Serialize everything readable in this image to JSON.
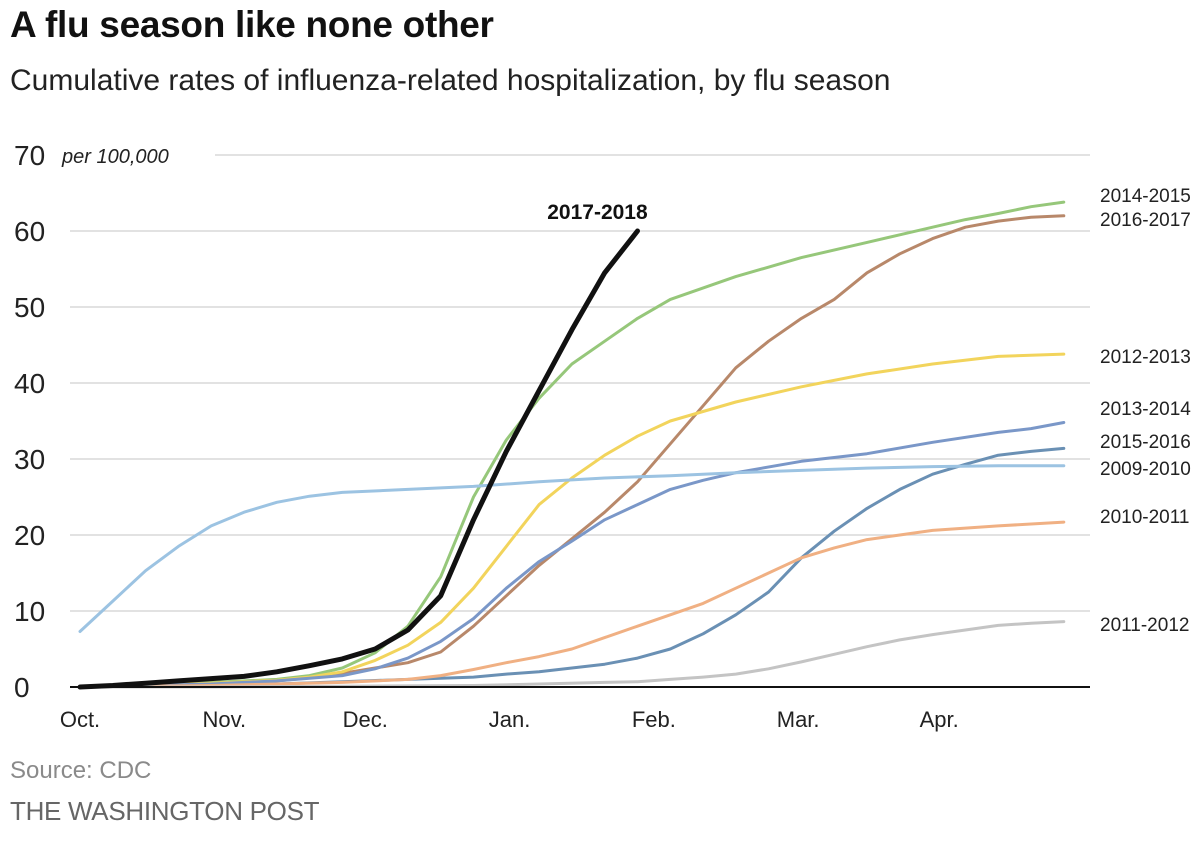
{
  "title": "A flu season like none other",
  "subtitle": "Cumulative rates of influenza-related hospitalization, by flu season",
  "source": "Source: CDC",
  "credit": "THE WASHINGTON POST",
  "chart_data": {
    "type": "line",
    "title": "A flu season like none other",
    "subtitle": "Cumulative rates of influenza-related hospitalization, by flu season",
    "x_unit": "week of flu season (week 0 = start of October)",
    "month_ticks": [
      {
        "label": "Oct.",
        "week": 0
      },
      {
        "label": "Nov.",
        "week": 4.4
      },
      {
        "label": "Dec.",
        "week": 8.7
      },
      {
        "label": "Jan.",
        "week": 13.1
      },
      {
        "label": "Feb.",
        "week": 17.5
      },
      {
        "label": "Mar.",
        "week": 21.9
      },
      {
        "label": "Apr.",
        "week": 26.2
      }
    ],
    "xlim": [
      0,
      30.8
    ],
    "ylim": [
      0,
      70
    ],
    "y_ticks": [
      0,
      10,
      20,
      30,
      40,
      50,
      60,
      70
    ],
    "y_unit_label": "per 100,000",
    "grid": true,
    "legend": "direct labels at right end of each line",
    "series": [
      {
        "name": "2017-2018",
        "color": "#111111",
        "width": 5,
        "label_weight": "bold",
        "label_position": "above end",
        "points": [
          [
            0,
            0
          ],
          [
            1,
            0.2
          ],
          [
            2,
            0.5
          ],
          [
            3,
            0.8
          ],
          [
            4,
            1.1
          ],
          [
            5,
            1.4
          ],
          [
            6,
            2
          ],
          [
            7,
            2.8
          ],
          [
            8,
            3.7
          ],
          [
            9,
            5
          ],
          [
            10,
            7.5
          ],
          [
            11,
            12
          ],
          [
            12,
            22
          ],
          [
            13,
            31
          ],
          [
            14,
            39
          ],
          [
            15,
            47
          ],
          [
            16,
            54.5
          ],
          [
            17,
            60
          ]
        ]
      },
      {
        "name": "2014-2015",
        "color": "#96c77a",
        "width": 3,
        "points": [
          [
            0,
            0
          ],
          [
            2,
            0.3
          ],
          [
            4,
            0.6
          ],
          [
            6,
            1
          ],
          [
            7,
            1.5
          ],
          [
            8,
            2.5
          ],
          [
            9,
            4.5
          ],
          [
            10,
            8
          ],
          [
            11,
            14.5
          ],
          [
            12,
            25
          ],
          [
            13,
            32.5
          ],
          [
            14,
            38
          ],
          [
            15,
            42.5
          ],
          [
            16,
            45.5
          ],
          [
            17,
            48.5
          ],
          [
            18,
            51
          ],
          [
            20,
            54
          ],
          [
            22,
            56.5
          ],
          [
            24,
            58.5
          ],
          [
            25,
            59.5
          ],
          [
            26,
            60.5
          ],
          [
            27,
            61.5
          ],
          [
            28,
            62.3
          ],
          [
            29,
            63.2
          ],
          [
            30,
            63.8
          ]
        ]
      },
      {
        "name": "2016-2017",
        "color": "#b8886a",
        "width": 3,
        "points": [
          [
            0,
            0
          ],
          [
            2,
            0.2
          ],
          [
            4,
            0.4
          ],
          [
            6,
            0.8
          ],
          [
            7,
            1.2
          ],
          [
            8,
            1.8
          ],
          [
            9,
            2.5
          ],
          [
            10,
            3.2
          ],
          [
            11,
            4.6
          ],
          [
            12,
            8
          ],
          [
            13,
            12
          ],
          [
            14,
            16
          ],
          [
            15,
            19.5
          ],
          [
            16,
            23
          ],
          [
            17,
            27
          ],
          [
            18,
            32
          ],
          [
            19,
            37
          ],
          [
            20,
            42
          ],
          [
            21,
            45.5
          ],
          [
            22,
            48.5
          ],
          [
            23,
            51
          ],
          [
            24,
            54.5
          ],
          [
            25,
            57
          ],
          [
            26,
            59
          ],
          [
            27,
            60.5
          ],
          [
            28,
            61.3
          ],
          [
            29,
            61.8
          ],
          [
            30,
            62
          ]
        ]
      },
      {
        "name": "2012-2013",
        "color": "#f2d45c",
        "width": 3,
        "points": [
          [
            0,
            0
          ],
          [
            2,
            0.2
          ],
          [
            4,
            0.5
          ],
          [
            6,
            0.9
          ],
          [
            7,
            1.3
          ],
          [
            8,
            2
          ],
          [
            9,
            3.5
          ],
          [
            10,
            5.5
          ],
          [
            11,
            8.5
          ],
          [
            12,
            13
          ],
          [
            13,
            18.5
          ],
          [
            14,
            24
          ],
          [
            15,
            27.5
          ],
          [
            16,
            30.5
          ],
          [
            17,
            33
          ],
          [
            18,
            35
          ],
          [
            20,
            37.5
          ],
          [
            22,
            39.5
          ],
          [
            24,
            41.2
          ],
          [
            26,
            42.5
          ],
          [
            28,
            43.5
          ],
          [
            30,
            43.8
          ]
        ]
      },
      {
        "name": "2013-2014",
        "color": "#7a97c8",
        "width": 3,
        "points": [
          [
            0,
            0
          ],
          [
            2,
            0.2
          ],
          [
            4,
            0.4
          ],
          [
            6,
            0.8
          ],
          [
            8,
            1.5
          ],
          [
            9,
            2.4
          ],
          [
            10,
            3.8
          ],
          [
            11,
            6
          ],
          [
            12,
            9
          ],
          [
            13,
            13
          ],
          [
            14,
            16.5
          ],
          [
            15,
            19.2
          ],
          [
            16,
            22
          ],
          [
            17,
            24
          ],
          [
            18,
            26
          ],
          [
            19,
            27.2
          ],
          [
            20,
            28.2
          ],
          [
            22,
            29.7
          ],
          [
            24,
            30.7
          ],
          [
            26,
            32.2
          ],
          [
            28,
            33.5
          ],
          [
            29,
            34
          ],
          [
            30,
            34.8
          ]
        ]
      },
      {
        "name": "2015-2016",
        "color": "#6a90b4",
        "width": 3,
        "points": [
          [
            0,
            0
          ],
          [
            2,
            0.1
          ],
          [
            4,
            0.2
          ],
          [
            6,
            0.4
          ],
          [
            8,
            0.7
          ],
          [
            10,
            1
          ],
          [
            12,
            1.3
          ],
          [
            13,
            1.7
          ],
          [
            14,
            2
          ],
          [
            15,
            2.5
          ],
          [
            16,
            3
          ],
          [
            17,
            3.8
          ],
          [
            18,
            5
          ],
          [
            19,
            7
          ],
          [
            20,
            9.5
          ],
          [
            21,
            12.5
          ],
          [
            22,
            17
          ],
          [
            23,
            20.5
          ],
          [
            24,
            23.5
          ],
          [
            25,
            26
          ],
          [
            26,
            28
          ],
          [
            27,
            29.3
          ],
          [
            28,
            30.5
          ],
          [
            29,
            31
          ],
          [
            30,
            31.4
          ]
        ]
      },
      {
        "name": "2009-2010",
        "color": "#9cc3e2",
        "width": 3,
        "points": [
          [
            0,
            7.3
          ],
          [
            1,
            11.3
          ],
          [
            2,
            15.3
          ],
          [
            3,
            18.5
          ],
          [
            4,
            21.2
          ],
          [
            5,
            23
          ],
          [
            6,
            24.3
          ],
          [
            7,
            25.1
          ],
          [
            8,
            25.6
          ],
          [
            10,
            26
          ],
          [
            12,
            26.4
          ],
          [
            14,
            27
          ],
          [
            16,
            27.5
          ],
          [
            18,
            27.8
          ],
          [
            20,
            28.2
          ],
          [
            22,
            28.5
          ],
          [
            24,
            28.8
          ],
          [
            26,
            29
          ],
          [
            28,
            29.1
          ],
          [
            30,
            29.1
          ]
        ]
      },
      {
        "name": "2010-2011",
        "color": "#f0b083",
        "width": 3,
        "points": [
          [
            0,
            0
          ],
          [
            2,
            0.1
          ],
          [
            4,
            0.2
          ],
          [
            6,
            0.4
          ],
          [
            8,
            0.6
          ],
          [
            10,
            1
          ],
          [
            11,
            1.5
          ],
          [
            12,
            2.3
          ],
          [
            13,
            3.2
          ],
          [
            14,
            4
          ],
          [
            15,
            5
          ],
          [
            16,
            6.5
          ],
          [
            17,
            8
          ],
          [
            18,
            9.5
          ],
          [
            19,
            11
          ],
          [
            20,
            13
          ],
          [
            21,
            15
          ],
          [
            22,
            17
          ],
          [
            23,
            18.3
          ],
          [
            24,
            19.4
          ],
          [
            25,
            20
          ],
          [
            26,
            20.6
          ],
          [
            28,
            21.2
          ],
          [
            30,
            21.7
          ]
        ]
      },
      {
        "name": "2011-2012",
        "color": "#c4c4c4",
        "width": 3,
        "points": [
          [
            0,
            0
          ],
          [
            4,
            0
          ],
          [
            8,
            0.1
          ],
          [
            12,
            0.2
          ],
          [
            14,
            0.4
          ],
          [
            16,
            0.6
          ],
          [
            17,
            0.7
          ],
          [
            18,
            1
          ],
          [
            19,
            1.3
          ],
          [
            20,
            1.7
          ],
          [
            21,
            2.4
          ],
          [
            22,
            3.3
          ],
          [
            23,
            4.3
          ],
          [
            24,
            5.3
          ],
          [
            25,
            6.2
          ],
          [
            26,
            6.9
          ],
          [
            27,
            7.5
          ],
          [
            28,
            8.1
          ],
          [
            29,
            8.4
          ],
          [
            30,
            8.6
          ]
        ]
      }
    ]
  }
}
